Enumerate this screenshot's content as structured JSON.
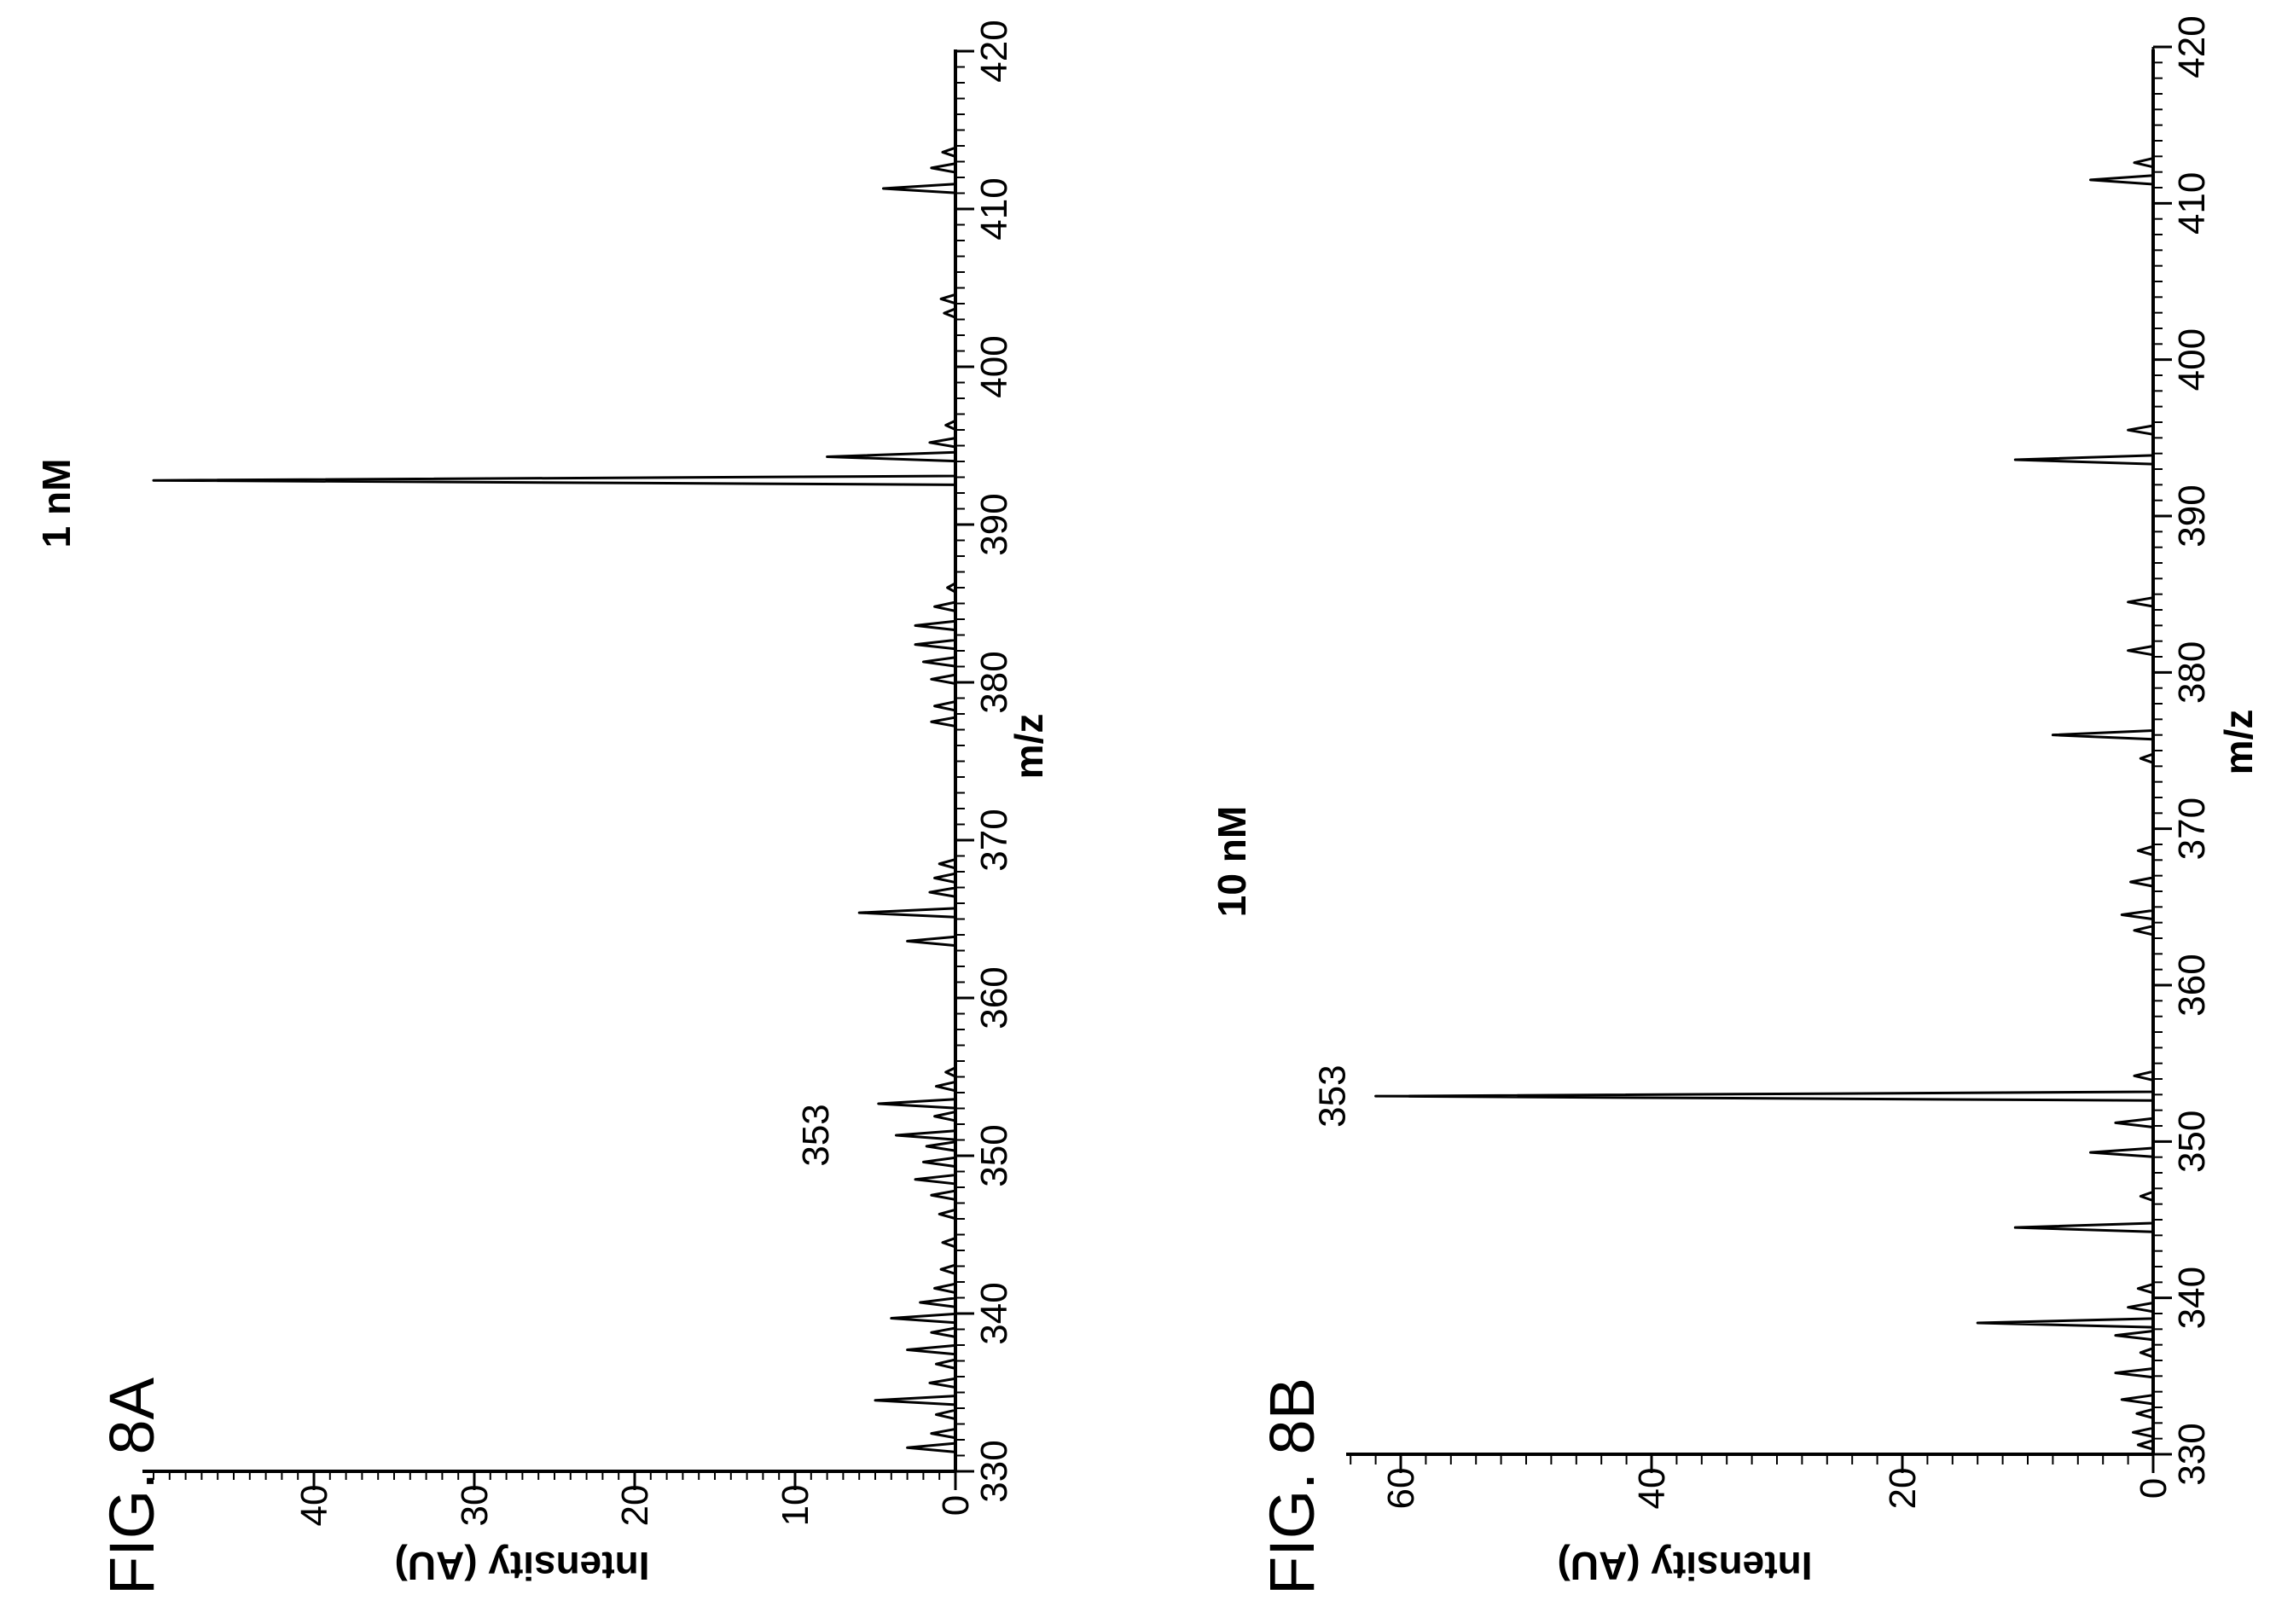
{
  "chart_data": [
    {
      "type": "line",
      "figure_label": "FIG. 8A",
      "title": "1 nM",
      "xlabel": "m/z",
      "ylabel": "Intensity (AU)",
      "xlim": [
        330,
        420
      ],
      "ylim": [
        0,
        50
      ],
      "x_ticks": [
        "330",
        "340",
        "350",
        "360",
        "370",
        "380",
        "390",
        "400",
        "410",
        "420"
      ],
      "y_ticks": [
        "0",
        "10",
        "20",
        "30",
        "40"
      ],
      "annotations": [
        {
          "text": "353",
          "x": 351.3,
          "y": 6
        }
      ],
      "peaks": [
        {
          "x": 331.5,
          "y": 3
        },
        {
          "x": 332.4,
          "y": 1.5
        },
        {
          "x": 333.6,
          "y": 1.2
        },
        {
          "x": 334.5,
          "y": 5
        },
        {
          "x": 335.6,
          "y": 1.6
        },
        {
          "x": 336.8,
          "y": 1.2
        },
        {
          "x": 337.7,
          "y": 3
        },
        {
          "x": 338.8,
          "y": 1.5
        },
        {
          "x": 339.7,
          "y": 4
        },
        {
          "x": 340.7,
          "y": 2.2
        },
        {
          "x": 341.6,
          "y": 1.3
        },
        {
          "x": 342.8,
          "y": 0.9
        },
        {
          "x": 344.5,
          "y": 0.8
        },
        {
          "x": 346.3,
          "y": 1.0
        },
        {
          "x": 347.5,
          "y": 1.5
        },
        {
          "x": 348.5,
          "y": 2.5
        },
        {
          "x": 349.6,
          "y": 2.0
        },
        {
          "x": 350.6,
          "y": 1.8
        },
        {
          "x": 351.3,
          "y": 3.7
        },
        {
          "x": 352.5,
          "y": 1.3
        },
        {
          "x": 353.3,
          "y": 4.8
        },
        {
          "x": 354.4,
          "y": 1.2
        },
        {
          "x": 355.3,
          "y": 0.6
        },
        {
          "x": 363.6,
          "y": 3.0
        },
        {
          "x": 365.4,
          "y": 6.0
        },
        {
          "x": 366.7,
          "y": 1.6
        },
        {
          "x": 367.6,
          "y": 1.3
        },
        {
          "x": 368.5,
          "y": 1.0
        },
        {
          "x": 377.5,
          "y": 1.5
        },
        {
          "x": 378.5,
          "y": 1.3
        },
        {
          "x": 380.2,
          "y": 1.5
        },
        {
          "x": 381.3,
          "y": 2.0
        },
        {
          "x": 382.4,
          "y": 2.5
        },
        {
          "x": 383.6,
          "y": 2.5
        },
        {
          "x": 384.8,
          "y": 1.3
        },
        {
          "x": 386.0,
          "y": 0.5
        },
        {
          "x": 392.8,
          "y": 50
        },
        {
          "x": 394.3,
          "y": 8
        },
        {
          "x": 395.2,
          "y": 1.6
        },
        {
          "x": 396.3,
          "y": 0.6
        },
        {
          "x": 403.4,
          "y": 0.7
        },
        {
          "x": 404.3,
          "y": 0.9
        },
        {
          "x": 411.3,
          "y": 4.5
        },
        {
          "x": 412.6,
          "y": 1.5
        },
        {
          "x": 413.6,
          "y": 0.8
        }
      ]
    },
    {
      "type": "line",
      "figure_label": "FIG. 8B",
      "title": "10 nM",
      "xlabel": "m/z",
      "ylabel": "Intensity (AU)",
      "xlim": [
        330,
        420
      ],
      "ylim": [
        0,
        65
      ],
      "x_ticks": [
        "330",
        "340",
        "350",
        "360",
        "370",
        "380",
        "390",
        "400",
        "410",
        "420"
      ],
      "y_ticks": [
        "0",
        "20",
        "40",
        "60"
      ],
      "annotations": [
        {
          "text": "353",
          "x": 352.9,
          "y": 62
        }
      ],
      "peaks": [
        {
          "x": 330.6,
          "y": 1.2
        },
        {
          "x": 331.4,
          "y": 1.6
        },
        {
          "x": 332.6,
          "y": 1.3
        },
        {
          "x": 333.5,
          "y": 2.5
        },
        {
          "x": 335.2,
          "y": 3.0
        },
        {
          "x": 336.5,
          "y": 1.0
        },
        {
          "x": 337.6,
          "y": 3.0
        },
        {
          "x": 338.4,
          "y": 14
        },
        {
          "x": 339.4,
          "y": 2.0
        },
        {
          "x": 340.6,
          "y": 1.2
        },
        {
          "x": 344.5,
          "y": 11
        },
        {
          "x": 346.5,
          "y": 1.0
        },
        {
          "x": 349.3,
          "y": 5.0
        },
        {
          "x": 351.2,
          "y": 3.0
        },
        {
          "x": 352.9,
          "y": 62
        },
        {
          "x": 354.2,
          "y": 1.5
        },
        {
          "x": 363.5,
          "y": 1.5
        },
        {
          "x": 364.5,
          "y": 2.5
        },
        {
          "x": 366.6,
          "y": 1.8
        },
        {
          "x": 368.6,
          "y": 1.2
        },
        {
          "x": 374.5,
          "y": 1.0
        },
        {
          "x": 376.0,
          "y": 8.0
        },
        {
          "x": 381.4,
          "y": 2.0
        },
        {
          "x": 384.5,
          "y": 2.0
        },
        {
          "x": 393.6,
          "y": 11
        },
        {
          "x": 395.5,
          "y": 2.0
        },
        {
          "x": 411.5,
          "y": 5.0
        },
        {
          "x": 412.6,
          "y": 1.5
        }
      ]
    }
  ]
}
